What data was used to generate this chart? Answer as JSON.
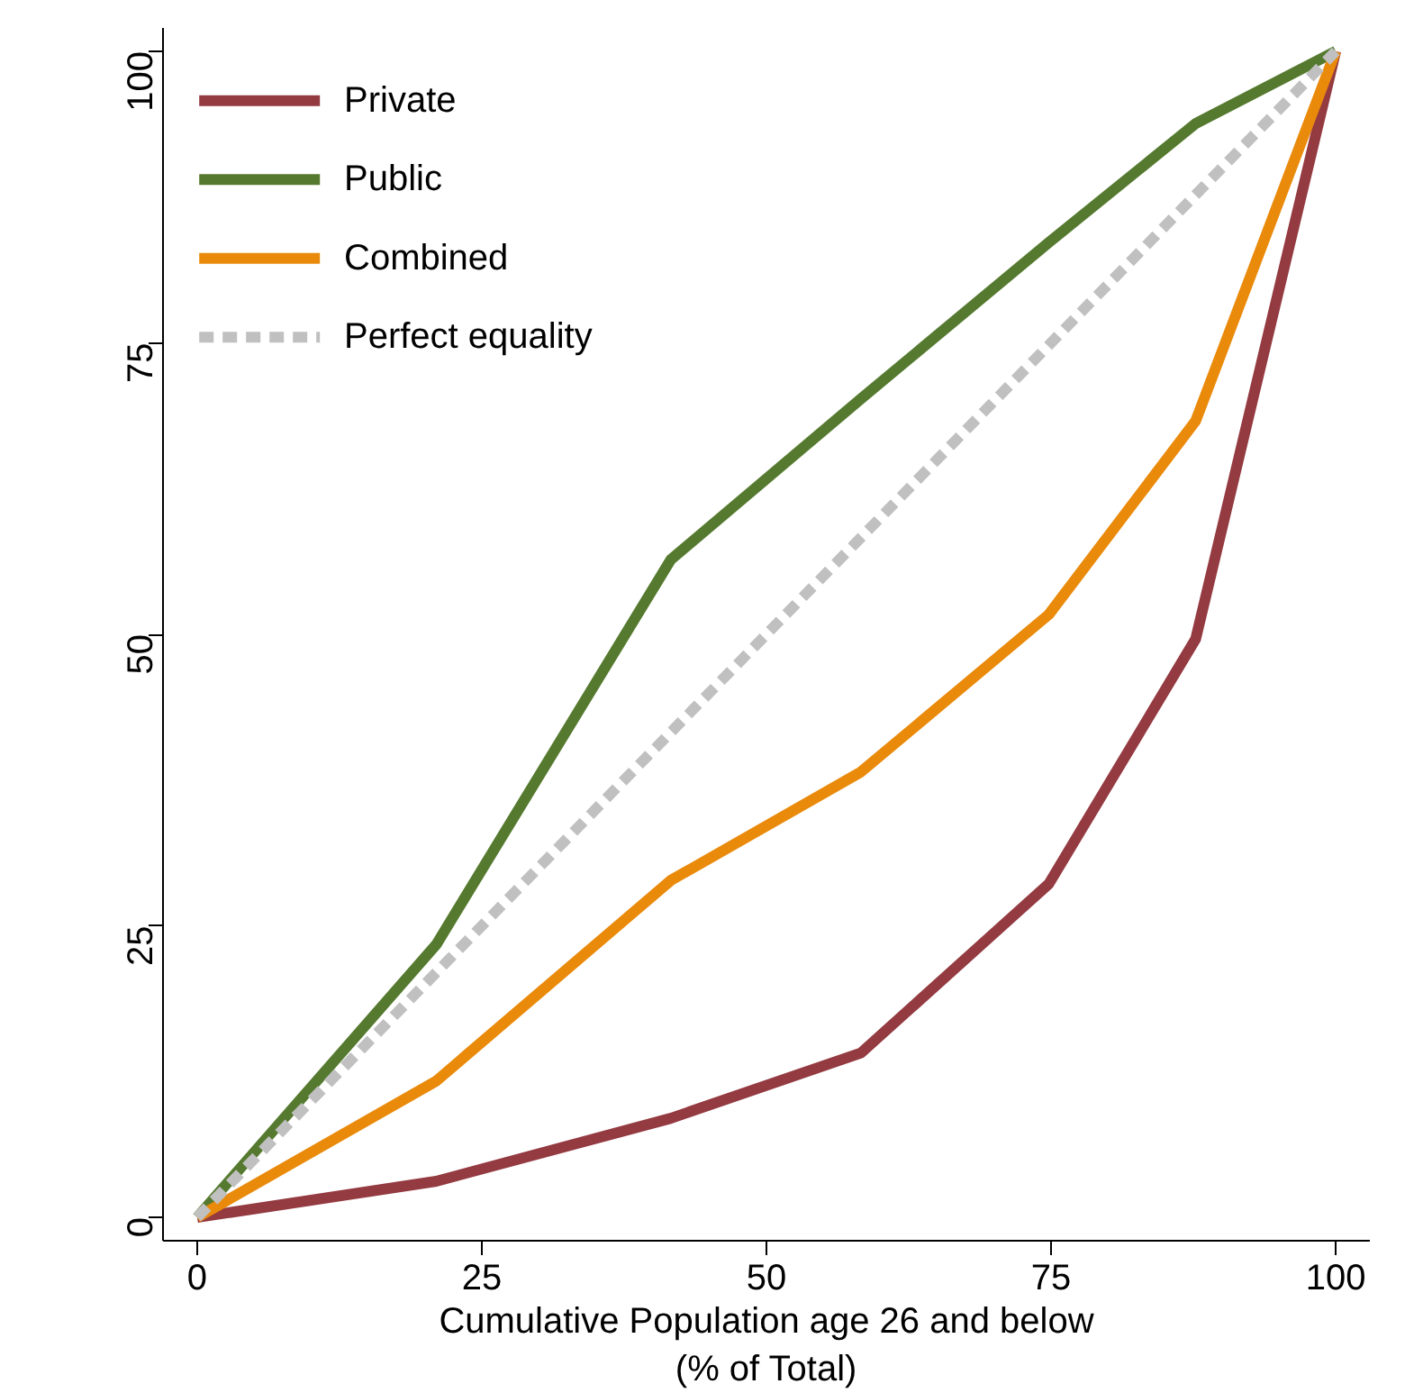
{
  "chart_data": {
    "type": "line",
    "xlabel": "Cumulative Population age 26 and below\n(% of Total)",
    "x": [
      0,
      21,
      41.6,
      58.3,
      74.8,
      87.7,
      100
    ],
    "series": [
      {
        "name": "Private",
        "color": "#943a41",
        "values": [
          0,
          3.1,
          8.5,
          14.1,
          28.6,
          49.6,
          100
        ]
      },
      {
        "name": "Public",
        "color": "#557a2f",
        "values": [
          0,
          23.4,
          56.4,
          70.2,
          83.6,
          93.8,
          100
        ]
      },
      {
        "name": "Combined",
        "color": "#ea8a0b",
        "values": [
          0,
          11.7,
          28.9,
          38.2,
          51.7,
          68.3,
          100
        ]
      },
      {
        "name": "Perfect equality",
        "color": "#c0c0c0",
        "x": [
          0,
          100
        ],
        "values": [
          0,
          100
        ],
        "line_style": "dashed"
      }
    ],
    "xlim": [
      -3,
      103
    ],
    "ylim": [
      -2,
      102
    ],
    "xticks": [
      0,
      25,
      50,
      75,
      100
    ],
    "yticks": [
      0,
      25,
      50,
      75,
      100
    ],
    "grid": false,
    "legend": "top left",
    "marker": "none",
    "line_style": "solid"
  }
}
